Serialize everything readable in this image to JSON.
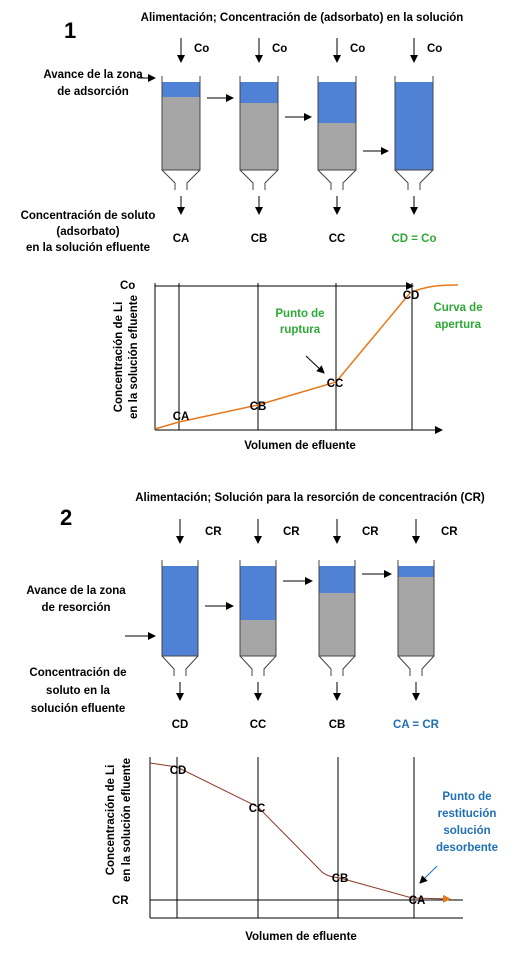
{
  "colors": {
    "solution": "#4F81D5",
    "adsorbent": "#A6A6A6",
    "curve": "#E8771A",
    "green_label": "#2EA836",
    "blue_label": "#1F6FB5"
  },
  "part1": {
    "number": "1",
    "feed_title": "Alimentación; Concentración de (adsorbato) en la solución",
    "feed_label": "Co",
    "zone_label": [
      "Avance de la zona",
      "de adsorción"
    ],
    "effluent_label": [
      "Concentración de soluto",
      "(adsorbato)",
      "en la solución efluente"
    ],
    "columns": [
      {
        "outlet": "CA",
        "solution_fraction": 0.17
      },
      {
        "outlet": "CB",
        "solution_fraction": 0.24
      },
      {
        "outlet": "CC",
        "solution_fraction": 0.47
      },
      {
        "outlet": "CD = Co",
        "solution_fraction": 1.0
      }
    ],
    "chart": {
      "y_label": [
        "Concentración de Li",
        "en la solución efluente"
      ],
      "x_label": "Volumen de efluente",
      "co_label": "Co",
      "points": [
        "CA",
        "CB",
        "CC",
        "CD"
      ],
      "breakthrough_label": [
        "Punto de",
        "ruptura"
      ],
      "curve_label": [
        "Curva de",
        "apertura"
      ]
    }
  },
  "part2": {
    "number": "2",
    "feed_title": "Alimentación; Solución para la resorción de concentración (CR)",
    "feed_label": "CR",
    "zone_label": [
      "Avance de la zona",
      "de resorción"
    ],
    "effluent_label": [
      "Concentración de",
      "soluto en la",
      "solución efluente"
    ],
    "columns": [
      {
        "outlet": "CD",
        "solution_fraction": 1.0
      },
      {
        "outlet": "CC",
        "solution_fraction": 0.6
      },
      {
        "outlet": "CB",
        "solution_fraction": 0.3
      },
      {
        "outlet": "CA = CR",
        "solution_fraction": 0.12
      }
    ],
    "chart": {
      "y_label": [
        "Concentración de Li",
        "en la solución efluente"
      ],
      "x_label": "Volumen de efluente",
      "cr_label": "CR",
      "points": [
        "CD",
        "CC",
        "CB",
        "CA"
      ],
      "restitution_label": [
        "Punto de",
        "restitución",
        "solución",
        "desorbente"
      ]
    }
  }
}
